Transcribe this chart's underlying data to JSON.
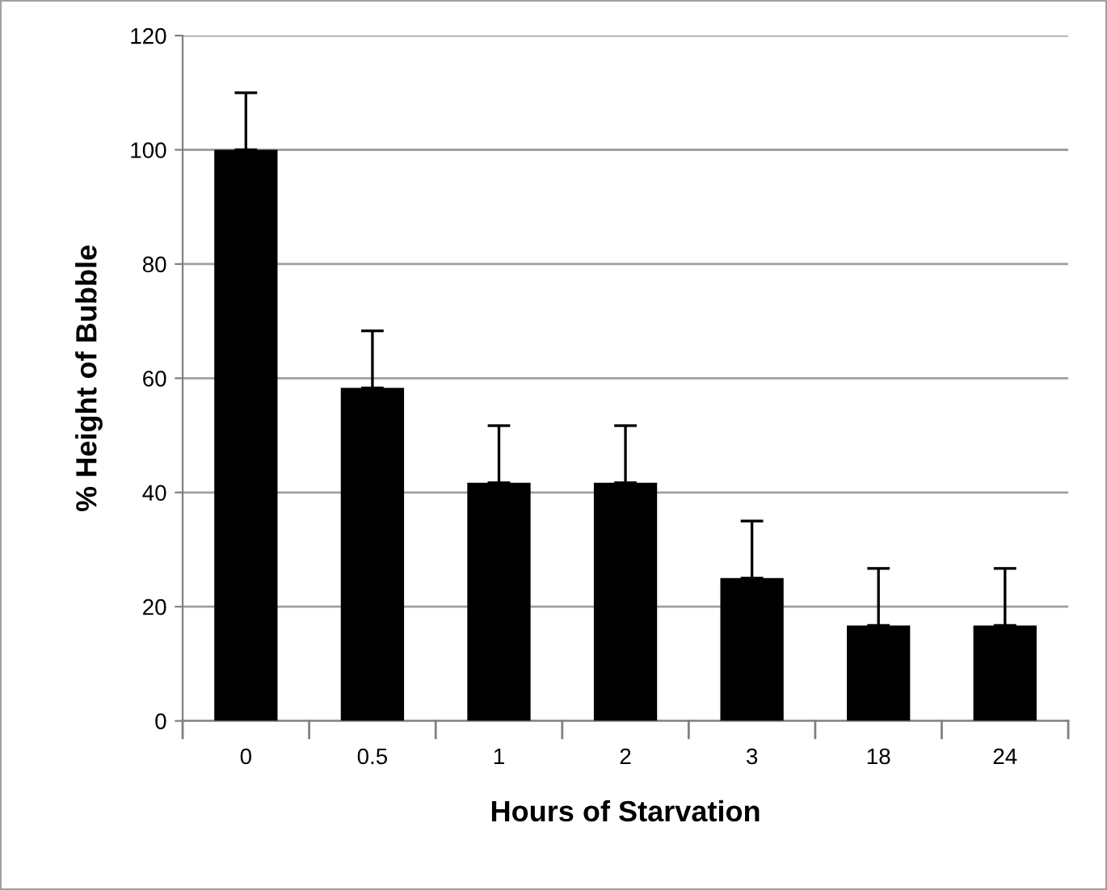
{
  "chart_data": {
    "type": "bar",
    "xlabel": "Hours of Starvation",
    "ylabel": "% Height of Bubble",
    "categories": [
      "0",
      "0.5",
      "1",
      "2",
      "3",
      "18",
      "24"
    ],
    "values": [
      100,
      58.3,
      41.7,
      41.7,
      25,
      16.7,
      16.7
    ],
    "errors": [
      [
        100,
        110
      ],
      [
        58.3,
        68.3
      ],
      [
        41.7,
        51.7
      ],
      [
        41.7,
        51.7
      ],
      [
        25,
        35
      ],
      [
        16.7,
        26.7
      ],
      [
        16.7,
        26.7
      ]
    ],
    "color": "#000000",
    "ylim": [
      0,
      120
    ],
    "yticks": [
      0,
      20,
      40,
      60,
      80,
      100,
      120
    ],
    "grid": "y"
  }
}
